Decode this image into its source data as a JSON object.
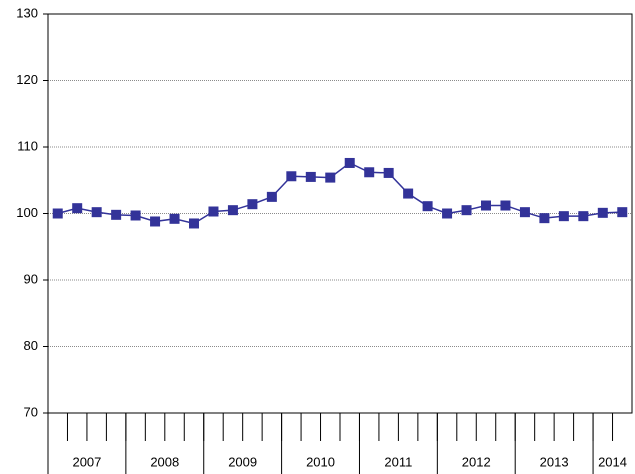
{
  "chart_data": {
    "type": "line",
    "categories": [
      null,
      null,
      null,
      null,
      null,
      null,
      null,
      null,
      null,
      null,
      null,
      null,
      null,
      null,
      null,
      null,
      null,
      null,
      null,
      null,
      null,
      null,
      null,
      null,
      null,
      null,
      null,
      null,
      null,
      null
    ],
    "groups": [
      {
        "label": "2007",
        "count": 4
      },
      {
        "label": "2008",
        "count": 4
      },
      {
        "label": "2009",
        "count": 4
      },
      {
        "label": "2010",
        "count": 4
      },
      {
        "label": "2011",
        "count": 4
      },
      {
        "label": "2012",
        "count": 4
      },
      {
        "label": "2013",
        "count": 4
      },
      {
        "label": "2014",
        "count": 2
      }
    ],
    "series": [
      {
        "color": "#333399",
        "values": [
          100,
          100.8,
          100.2,
          99.8,
          99.7,
          98.8,
          99.2,
          98.5,
          100.3,
          100.5,
          101.4,
          102.5,
          105.6,
          105.5,
          105.4,
          107.6,
          106.2,
          106.1,
          103,
          101.1,
          100,
          100.5,
          101.2,
          101.2,
          100.2,
          99.3,
          99.6,
          99.6,
          100.1,
          100.2
        ]
      }
    ],
    "ylim": [
      70,
      130
    ],
    "yticks": [
      70,
      80,
      90,
      100,
      110,
      120,
      130
    ],
    "grid": true
  }
}
